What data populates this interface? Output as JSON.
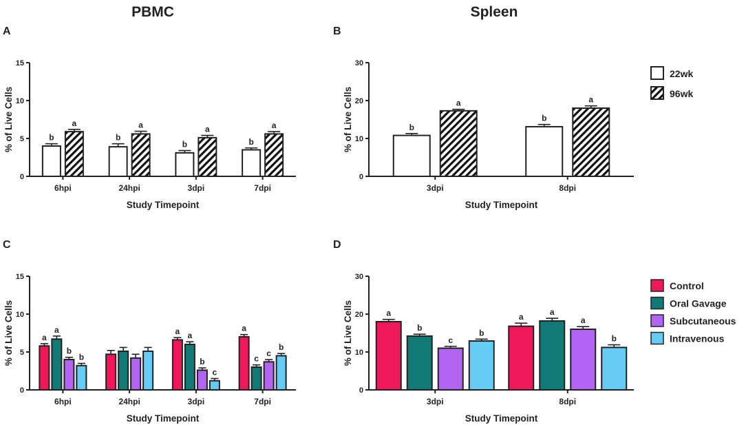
{
  "column_titles": {
    "left": "PBMC",
    "right": "Spleen"
  },
  "colors": {
    "22wk": "#ffffff",
    "Control": "#f0175a",
    "Oral Gavage": "#127a76",
    "Subcutaneous": "#b165f2",
    "Intravenous": "#66ccf5",
    "axis": "#222222"
  },
  "legend_top": [
    {
      "label": "22wk",
      "pattern": "none"
    },
    {
      "label": "96wk",
      "pattern": "hatch"
    }
  ],
  "legend_bottom": [
    {
      "label": "Control"
    },
    {
      "label": "Oral Gavage"
    },
    {
      "label": "Subcutaneous"
    },
    {
      "label": "Intravenous"
    }
  ],
  "chart_data": [
    {
      "panel": "A",
      "type": "bar",
      "categories": [
        "6hpi",
        "24hpi",
        "3dpi",
        "7dpi"
      ],
      "xlabel": "Study Timepoint",
      "ylabel": "% of Live Cells",
      "ylim": [
        0,
        15
      ],
      "yticks": [
        0,
        5,
        10,
        15
      ],
      "series": [
        {
          "name": "22wk",
          "values": [
            4.0,
            3.9,
            3.1,
            3.5
          ],
          "errors": [
            0.3,
            0.4,
            0.3,
            0.25
          ],
          "labels": [
            "b",
            "b",
            "b",
            "b"
          ]
        },
        {
          "name": "96wk",
          "values": [
            5.9,
            5.6,
            5.1,
            5.6
          ],
          "errors": [
            0.3,
            0.35,
            0.3,
            0.3
          ],
          "labels": [
            "a",
            "a",
            "a",
            "a"
          ]
        }
      ]
    },
    {
      "panel": "B",
      "type": "bar",
      "categories": [
        "3dpi",
        "8dpi"
      ],
      "xlabel": "Study Timepoint",
      "ylabel": "% of Live Cells",
      "ylim": [
        0,
        30
      ],
      "yticks": [
        0,
        10,
        20,
        30
      ],
      "series": [
        {
          "name": "22wk",
          "values": [
            10.8,
            13.1
          ],
          "errors": [
            0.5,
            0.6
          ],
          "labels": [
            "b",
            "b"
          ]
        },
        {
          "name": "96wk",
          "values": [
            17.3,
            18.0
          ],
          "errors": [
            0.4,
            0.6
          ],
          "labels": [
            "a",
            "a"
          ]
        }
      ]
    },
    {
      "panel": "C",
      "type": "bar",
      "categories": [
        "6hpi",
        "24hpi",
        "3dpi",
        "7dpi"
      ],
      "xlabel": "Study Timepoint",
      "ylabel": "% of Live Cells",
      "ylim": [
        0,
        15
      ],
      "yticks": [
        0,
        5,
        10,
        15
      ],
      "series": [
        {
          "name": "Control",
          "values": [
            5.8,
            4.7,
            6.6,
            7.0
          ],
          "errors": [
            0.3,
            0.5,
            0.3,
            0.3
          ],
          "labels": [
            "a",
            "",
            "a",
            "a"
          ]
        },
        {
          "name": "Oral Gavage",
          "values": [
            6.7,
            5.1,
            6.0,
            3.0
          ],
          "errors": [
            0.4,
            0.5,
            0.35,
            0.3
          ],
          "labels": [
            "a",
            "",
            "a",
            "c"
          ]
        },
        {
          "name": "Subcutaneous",
          "values": [
            4.0,
            4.2,
            2.6,
            3.7
          ],
          "errors": [
            0.3,
            0.5,
            0.3,
            0.3
          ],
          "labels": [
            "b",
            "",
            "b",
            "c"
          ]
        },
        {
          "name": "Intravenous",
          "values": [
            3.2,
            5.1,
            1.2,
            4.5
          ],
          "errors": [
            0.3,
            0.5,
            0.3,
            0.3
          ],
          "labels": [
            "b",
            "",
            "c",
            "b"
          ]
        }
      ]
    },
    {
      "panel": "D",
      "type": "bar",
      "categories": [
        "3dpi",
        "8dpi"
      ],
      "xlabel": "Study Timepoint",
      "ylabel": "% of Live Cells",
      "ylim": [
        0,
        30
      ],
      "yticks": [
        0,
        10,
        20,
        30
      ],
      "series": [
        {
          "name": "Control",
          "values": [
            18.0,
            16.8
          ],
          "errors": [
            0.6,
            0.8
          ],
          "labels": [
            "a",
            "a"
          ]
        },
        {
          "name": "Oral Gavage",
          "values": [
            14.2,
            18.2
          ],
          "errors": [
            0.5,
            0.7
          ],
          "labels": [
            "b",
            "a"
          ]
        },
        {
          "name": "Subcutaneous",
          "values": [
            11.0,
            16.0
          ],
          "errors": [
            0.5,
            0.7
          ],
          "labels": [
            "c",
            "a"
          ]
        },
        {
          "name": "Intravenous",
          "values": [
            12.9,
            11.2
          ],
          "errors": [
            0.5,
            0.7
          ],
          "labels": [
            "b",
            "b"
          ]
        }
      ]
    }
  ]
}
